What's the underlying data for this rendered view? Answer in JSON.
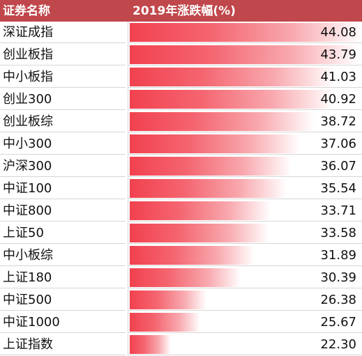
{
  "header": {
    "name_col": "证券名称",
    "change_col": "2019年涨跌幅(%)"
  },
  "colors": {
    "header_bg": "#c0474b",
    "bar_start": "#f2414f",
    "bar_end": "#ffffff"
  },
  "chart_data": {
    "type": "bar",
    "title": "",
    "xlabel": "",
    "ylabel": "",
    "xlim": [
      20,
      44.08
    ],
    "grid": false,
    "categories": [
      "深证成指",
      "创业板指",
      "中小板指",
      "创业300",
      "创业板综",
      "中小300",
      "沪深300",
      "中证100",
      "中证800",
      "上证50",
      "中小板综",
      "上证180",
      "中证500",
      "中证1000",
      "上证指数"
    ],
    "values": [
      44.08,
      43.79,
      41.03,
      40.92,
      38.72,
      37.06,
      36.07,
      35.54,
      33.71,
      33.58,
      31.89,
      30.39,
      26.38,
      25.67,
      22.3
    ],
    "value_labels": [
      "44.08",
      "43.79",
      "41.03",
      "40.92",
      "38.72",
      "37.06",
      "36.07",
      "35.54",
      "33.71",
      "33.58",
      "31.89",
      "30.39",
      "26.38",
      "25.67",
      "22.30"
    ]
  }
}
